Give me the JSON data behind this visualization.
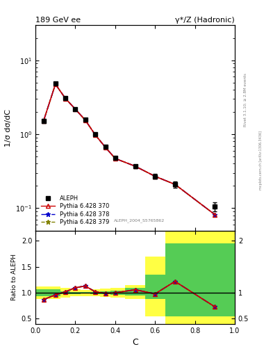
{
  "title_left": "189 GeV ee",
  "title_right": "γ*/Z (Hadronic)",
  "ylabel_main": "1/σ dσ/dC",
  "ylabel_ratio": "Ratio to ALEPH",
  "xlabel": "C",
  "right_label_top": "Rivet 3.1.10; ≥ 2.8M events",
  "watermark": "mcplots.cern.ch [arXiv:1306.3436]",
  "ref_label": "ALEPH_2004_S5765862",
  "aleph_x": [
    0.04,
    0.1,
    0.15,
    0.2,
    0.25,
    0.3,
    0.35,
    0.4,
    0.5,
    0.6,
    0.7,
    0.9
  ],
  "aleph_y": [
    1.52,
    4.82,
    3.1,
    2.2,
    1.57,
    1.0,
    0.68,
    0.48,
    0.37,
    0.27,
    0.21,
    0.105
  ],
  "aleph_yerr": [
    0.1,
    0.2,
    0.12,
    0.08,
    0.06,
    0.04,
    0.03,
    0.02,
    0.02,
    0.02,
    0.02,
    0.015
  ],
  "mc_x": [
    0.04,
    0.1,
    0.15,
    0.2,
    0.25,
    0.3,
    0.35,
    0.4,
    0.5,
    0.6,
    0.7,
    0.9
  ],
  "mc_y370": [
    1.5,
    4.75,
    3.05,
    2.18,
    1.55,
    0.98,
    0.67,
    0.47,
    0.37,
    0.27,
    0.21,
    0.082
  ],
  "mc_y378": [
    1.5,
    4.75,
    3.05,
    2.18,
    1.55,
    0.98,
    0.67,
    0.47,
    0.37,
    0.27,
    0.21,
    0.082
  ],
  "mc_y379": [
    1.5,
    4.75,
    3.05,
    2.18,
    1.55,
    0.98,
    0.67,
    0.47,
    0.37,
    0.27,
    0.21,
    0.082
  ],
  "ratio_x": [
    0.04,
    0.1,
    0.15,
    0.2,
    0.25,
    0.3,
    0.35,
    0.4,
    0.5,
    0.6,
    0.7,
    0.9
  ],
  "ratio_y370": [
    0.87,
    0.96,
    1.02,
    1.1,
    1.13,
    1.02,
    0.99,
    1.0,
    1.06,
    0.98,
    1.22,
    0.73
  ],
  "ratio_y378": [
    0.87,
    0.96,
    1.02,
    1.1,
    1.13,
    1.02,
    0.99,
    1.0,
    1.06,
    0.98,
    1.22,
    0.73
  ],
  "ratio_y379": [
    0.87,
    0.96,
    1.02,
    1.1,
    1.13,
    1.02,
    0.99,
    1.0,
    1.06,
    0.98,
    1.22,
    0.73
  ],
  "band_x_edges": [
    0.0,
    0.075,
    0.125,
    0.175,
    0.225,
    0.275,
    0.325,
    0.375,
    0.45,
    0.55,
    0.65,
    0.8,
    1.0
  ],
  "band_green_lo": [
    0.93,
    0.93,
    0.97,
    0.98,
    0.99,
    0.98,
    0.97,
    0.96,
    0.95,
    0.88,
    0.55,
    0.55
  ],
  "band_green_hi": [
    1.07,
    1.07,
    1.03,
    1.02,
    1.01,
    1.02,
    1.03,
    1.04,
    1.1,
    1.35,
    1.95,
    1.95
  ],
  "band_yellow_lo": [
    0.88,
    0.88,
    0.91,
    0.93,
    0.94,
    0.93,
    0.92,
    0.91,
    0.88,
    0.55,
    0.4,
    0.4
  ],
  "band_yellow_hi": [
    1.12,
    1.12,
    1.09,
    1.07,
    1.06,
    1.07,
    1.08,
    1.09,
    1.15,
    1.7,
    2.2,
    2.2
  ],
  "color_370": "#cc0000",
  "color_378": "#0000cc",
  "color_379": "#808000",
  "color_aleph": "black",
  "ylim_main": [
    0.05,
    30
  ],
  "ylim_ratio": [
    0.4,
    2.2
  ],
  "xlim": [
    0.0,
    1.0
  ]
}
